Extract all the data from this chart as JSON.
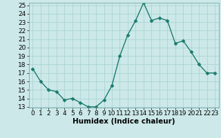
{
  "x": [
    0,
    1,
    2,
    3,
    4,
    5,
    6,
    7,
    8,
    9,
    10,
    11,
    12,
    13,
    14,
    15,
    16,
    17,
    18,
    19,
    20,
    21,
    22,
    23
  ],
  "y": [
    17.5,
    16.0,
    15.0,
    14.8,
    13.8,
    14.0,
    13.5,
    13.0,
    13.0,
    13.8,
    15.5,
    19.0,
    21.5,
    23.2,
    25.3,
    23.2,
    23.5,
    23.2,
    20.5,
    20.8,
    19.5,
    18.0,
    17.0,
    17.0
  ],
  "line_color": "#1a7a6e",
  "marker": "D",
  "marker_size": 2.5,
  "bg_color": "#cce8e8",
  "grid_color": "#aad4d4",
  "xlabel": "Humidex (Indice chaleur)",
  "ylim": [
    13,
    25
  ],
  "xlim": [
    -0.5,
    23.5
  ],
  "yticks": [
    13,
    14,
    15,
    16,
    17,
    18,
    19,
    20,
    21,
    22,
    23,
    24,
    25
  ],
  "xticks": [
    0,
    1,
    2,
    3,
    4,
    5,
    6,
    7,
    8,
    9,
    10,
    11,
    12,
    13,
    14,
    15,
    16,
    17,
    18,
    19,
    20,
    21,
    22,
    23
  ],
  "xlabel_fontsize": 7.5,
  "tick_fontsize": 6.5,
  "line_width": 1.0
}
